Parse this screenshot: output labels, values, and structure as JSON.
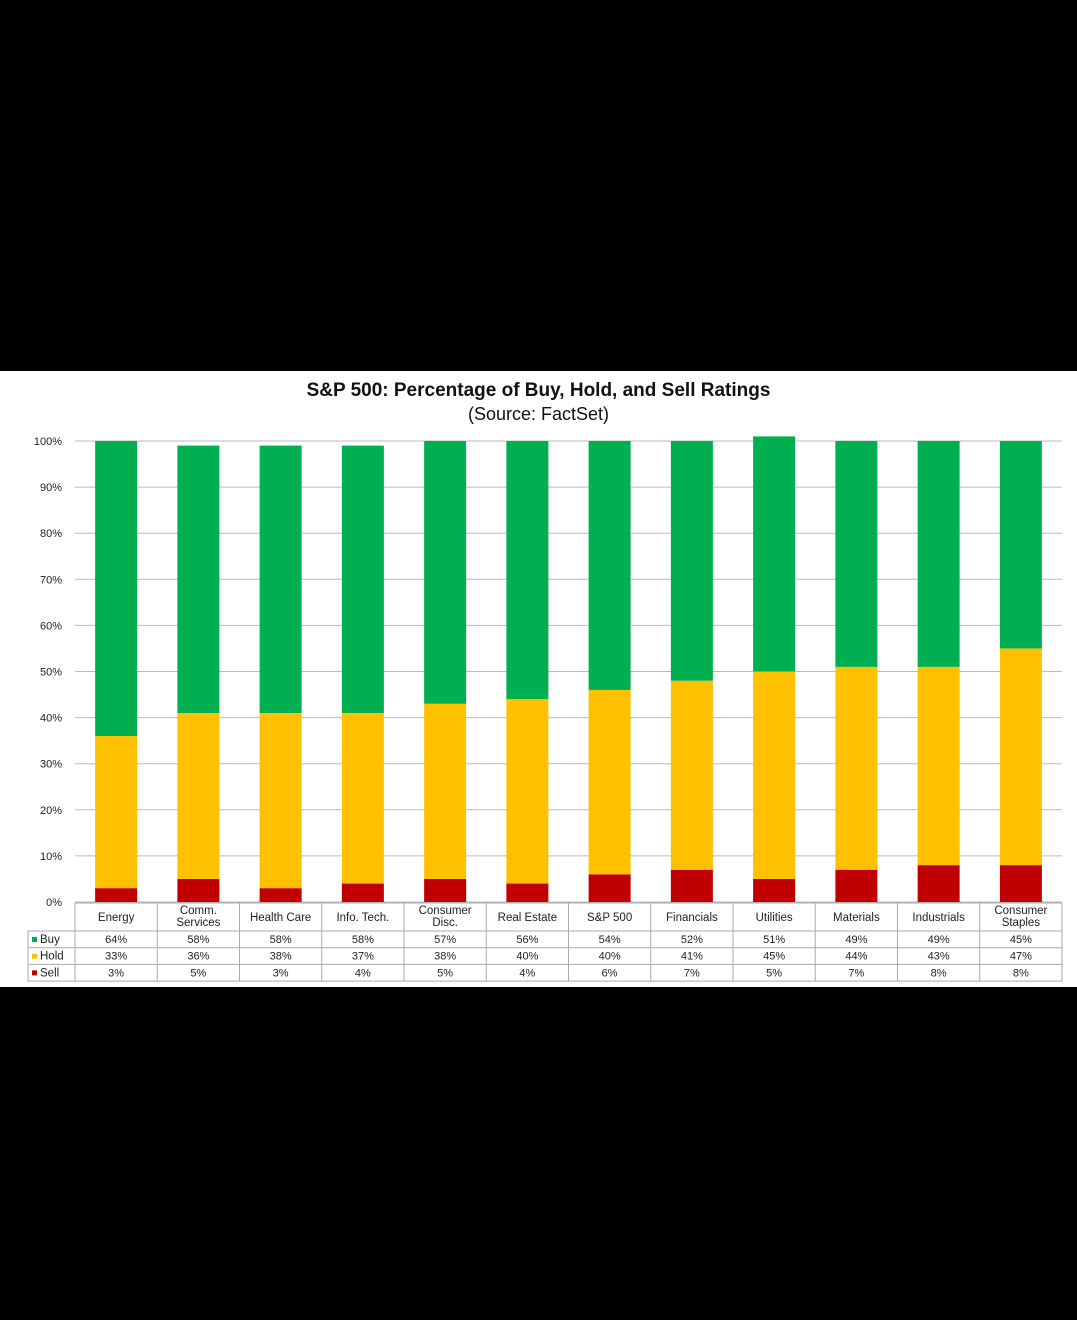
{
  "chart_data": {
    "type": "bar",
    "stacked": true,
    "title": "S&P 500: Percentage of Buy, Hold, and Sell Ratings",
    "subtitle": "(Source: FactSet)",
    "ylim": [
      0,
      100
    ],
    "yticks": [
      "0%",
      "10%",
      "20%",
      "30%",
      "40%",
      "50%",
      "60%",
      "70%",
      "80%",
      "90%",
      "100%"
    ],
    "grid": true,
    "legend": "data table at bottom",
    "categories": [
      [
        "Energy"
      ],
      [
        "Comm.",
        "Services"
      ],
      [
        "Health Care"
      ],
      [
        "Info. Tech."
      ],
      [
        "Consumer",
        "Disc."
      ],
      [
        "Real Estate"
      ],
      [
        "S&P 500"
      ],
      [
        "Financials"
      ],
      [
        "Utilities"
      ],
      [
        "Materials"
      ],
      [
        "Industrials"
      ],
      [
        "Consumer",
        "Staples"
      ]
    ],
    "series": [
      {
        "name": "Buy",
        "color": "#00b050",
        "values": [
          64,
          58,
          58,
          58,
          57,
          56,
          54,
          52,
          51,
          49,
          49,
          45
        ]
      },
      {
        "name": "Hold",
        "color": "#ffc000",
        "values": [
          33,
          36,
          38,
          37,
          38,
          40,
          40,
          41,
          45,
          44,
          43,
          47
        ]
      },
      {
        "name": "Sell",
        "color": "#c00000",
        "values": [
          3,
          5,
          3,
          4,
          5,
          4,
          6,
          7,
          5,
          7,
          8,
          8
        ]
      }
    ]
  }
}
